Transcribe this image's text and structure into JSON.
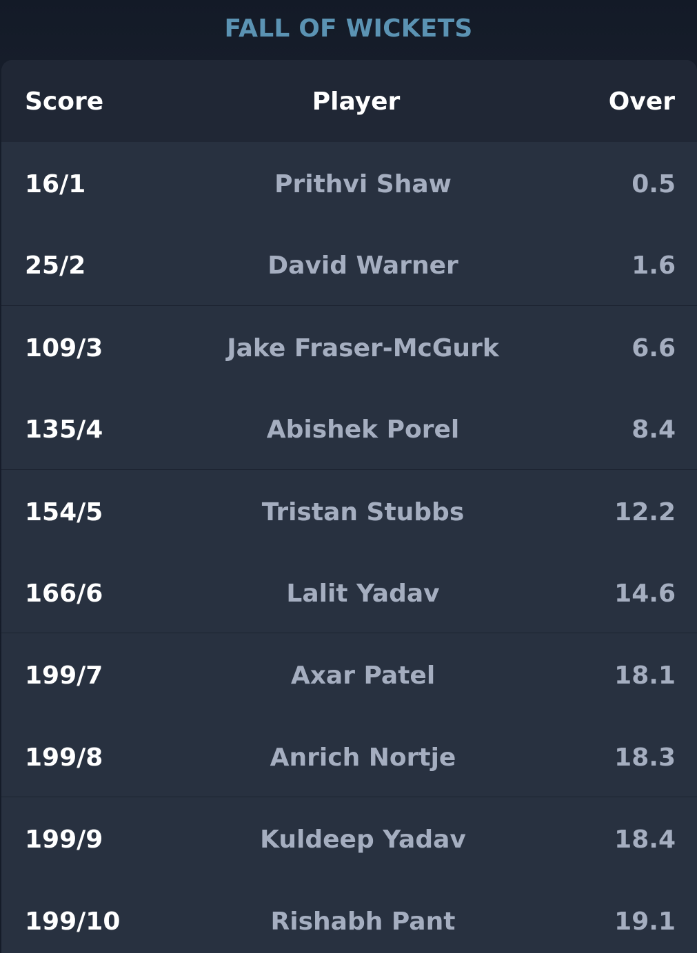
{
  "title": "FALL OF WICKETS",
  "columns": {
    "score": "Score",
    "player": "Player",
    "over": "Over"
  },
  "rows": [
    {
      "score": "16/1",
      "player": "Prithvi Shaw",
      "over": "0.5"
    },
    {
      "score": "25/2",
      "player": "David Warner",
      "over": "1.6"
    },
    {
      "score": "109/3",
      "player": "Jake Fraser-McGurk",
      "over": "6.6"
    },
    {
      "score": "135/4",
      "player": "Abishek Porel",
      "over": "8.4"
    },
    {
      "score": "154/5",
      "player": "Tristan Stubbs",
      "over": "12.2"
    },
    {
      "score": "166/6",
      "player": "Lalit Yadav",
      "over": "14.6"
    },
    {
      "score": "199/7",
      "player": "Axar Patel",
      "over": "18.1"
    },
    {
      "score": "199/8",
      "player": "Anrich Nortje",
      "over": "18.3"
    },
    {
      "score": "199/9",
      "player": "Kuldeep Yadav",
      "over": "18.4"
    },
    {
      "score": "199/10",
      "player": "Rishabh Pant",
      "over": "19.1"
    }
  ],
  "colors": {
    "title": "#5b93b3",
    "header_bg": "#202735",
    "body_bg": "#283140",
    "score_text": "#ffffff",
    "muted_text": "#a5aec0"
  }
}
